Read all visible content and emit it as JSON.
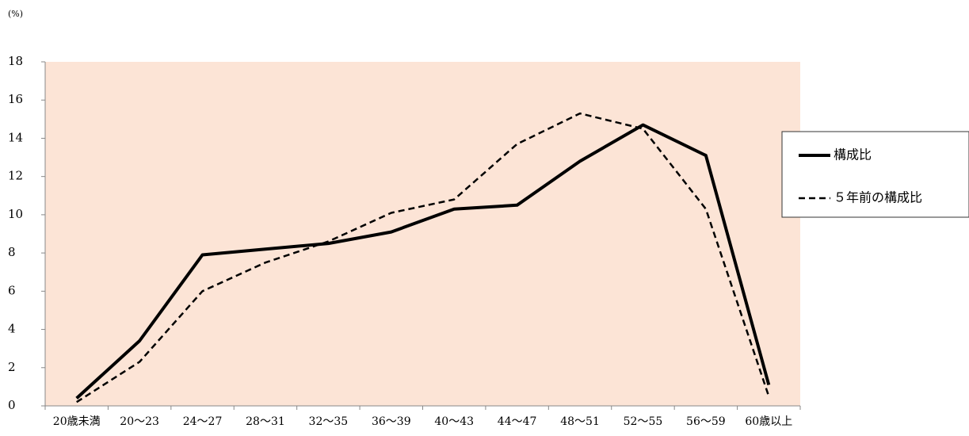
{
  "chart_data": {
    "type": "line",
    "y_unit_label": "(%)",
    "categories": [
      "20歳未満",
      "20〜23",
      "24〜27",
      "28〜31",
      "32〜35",
      "36〜39",
      "40〜43",
      "44〜47",
      "48〜51",
      "52〜55",
      "56〜59",
      "60歳以上"
    ],
    "series": [
      {
        "name": "構成比",
        "color": "#000000",
        "dash": "solid",
        "values": [
          0.4,
          3.4,
          7.9,
          8.2,
          8.5,
          9.1,
          10.3,
          10.5,
          12.8,
          14.7,
          13.1,
          1.1
        ]
      },
      {
        "name": "５年前の構成比",
        "color": "#000000",
        "dash": "dashed",
        "values": [
          0.2,
          2.3,
          6.0,
          7.5,
          8.6,
          10.1,
          10.8,
          13.7,
          15.3,
          14.5,
          10.3,
          0.5
        ]
      }
    ],
    "ylim": [
      0,
      18
    ],
    "yticks": [
      0,
      2,
      4,
      6,
      8,
      10,
      12,
      14,
      16,
      18
    ],
    "plot_background": "#fce4d6",
    "legend": "right"
  }
}
